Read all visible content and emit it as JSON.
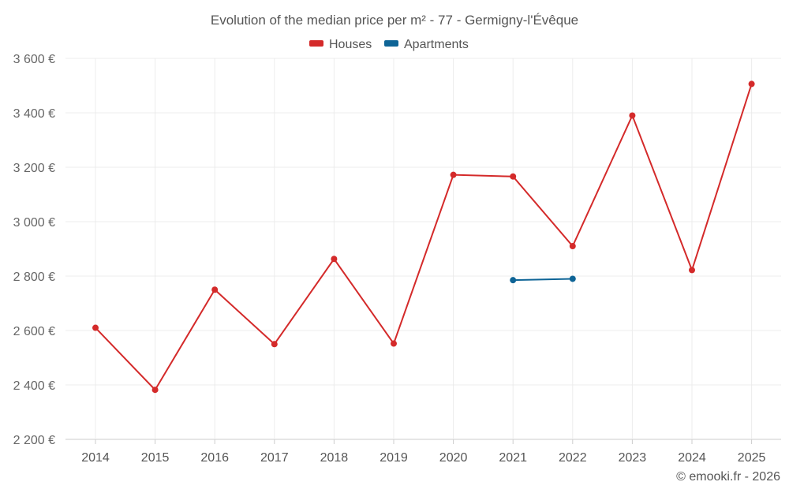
{
  "chart_data": {
    "type": "line",
    "title": "Evolution of the median price per m² - 77 - Germigny-l'Évêque",
    "xlabel": "",
    "ylabel": "",
    "categories": [
      "2014",
      "2015",
      "2016",
      "2017",
      "2018",
      "2019",
      "2020",
      "2021",
      "2022",
      "2023",
      "2024",
      "2025"
    ],
    "ylim": [
      2200,
      3600
    ],
    "yticks": [
      {
        "value": 2200,
        "label": "2 200 €"
      },
      {
        "value": 2400,
        "label": "2 400 €"
      },
      {
        "value": 2600,
        "label": "2 600 €"
      },
      {
        "value": 2800,
        "label": "2 800 €"
      },
      {
        "value": 3000,
        "label": "3 000 €"
      },
      {
        "value": 3200,
        "label": "3 200 €"
      },
      {
        "value": 3400,
        "label": "3 400 €"
      },
      {
        "value": 3600,
        "label": "3 600 €"
      }
    ],
    "series": [
      {
        "name": "Houses",
        "color": "#d42a2a",
        "values": [
          2610,
          2382,
          2750,
          2550,
          2863,
          2552,
          3172,
          3166,
          2910,
          3390,
          2822,
          3506
        ]
      },
      {
        "name": "Apartments",
        "color": "#0e6496",
        "values": [
          null,
          null,
          null,
          null,
          null,
          null,
          null,
          2785,
          2790,
          null,
          null,
          null
        ]
      }
    ],
    "legend_position": "top-center",
    "grid": true
  },
  "credit": "© emooki.fr - 2026"
}
